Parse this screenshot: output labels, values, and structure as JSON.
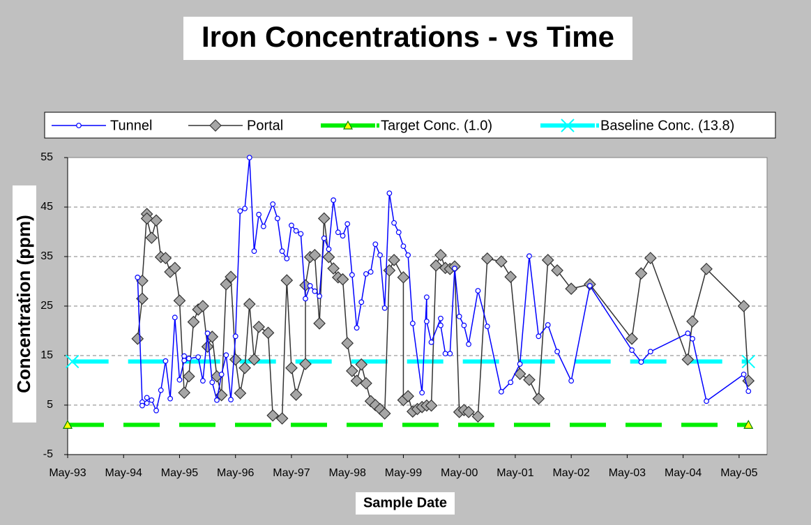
{
  "chart_data": {
    "type": "line",
    "title": "Iron Concentrations - vs Time",
    "x_label": "Sample Date",
    "y_label": "Concentration (ppm)",
    "xlim": [
      "May-93",
      "Nov-05"
    ],
    "xticks": [
      "May-93",
      "May-94",
      "May-95",
      "May-96",
      "May-97",
      "May-98",
      "May-99",
      "May-00",
      "May-01",
      "May-02",
      "May-03",
      "May-04",
      "May-05"
    ],
    "ylim": [
      -5,
      55
    ],
    "yticks": [
      -5,
      5,
      15,
      25,
      35,
      45,
      55
    ],
    "grid": true,
    "legend": "top",
    "series": [
      {
        "name": "Tunnel",
        "color": "#0000ff",
        "marker": "circle",
        "marker_fill": "#ffffff",
        "x": [
          "Aug-94",
          "Sep-94",
          "Sep-94",
          "Oct-94",
          "Oct-94",
          "Nov-94",
          "Dec-94",
          "Jan-95",
          "Feb-95",
          "Mar-95",
          "Apr-95",
          "May-95",
          "Jun-95",
          "Jun-95",
          "Jul-95",
          "Sep-95",
          "Oct-95",
          "Nov-95",
          "Dec-95",
          "Jan-96",
          "Feb-96",
          "Mar-96",
          "Apr-96",
          "May-96",
          "Jun-96",
          "Jul-96",
          "Aug-96",
          "Sep-96",
          "Oct-96",
          "Nov-96",
          "Jan-97",
          "Feb-97",
          "Mar-97",
          "Apr-97",
          "May-97",
          "Jun-97",
          "Jul-97",
          "Aug-97",
          "Sep-97",
          "Oct-97",
          "Nov-97",
          "Dec-97",
          "Jan-98",
          "Feb-98",
          "Mar-98",
          "Apr-98",
          "May-98",
          "Jun-98",
          "Jul-98",
          "Aug-98",
          "Sep-98",
          "Oct-98",
          "Nov-98",
          "Dec-98",
          "Jan-99",
          "Feb-99",
          "Mar-99",
          "Apr-99",
          "May-99",
          "Jun-99",
          "Jul-99",
          "Sep-99",
          "Oct-99",
          "Oct-99",
          "Nov-99",
          "Jan-00",
          "Jan-00",
          "Feb-00",
          "Mar-00",
          "Apr-00",
          "May-00",
          "Jun-00",
          "Jul-00",
          "Sep-00",
          "Nov-00",
          "Feb-01",
          "Apr-01",
          "Jun-01",
          "Aug-01",
          "Oct-01",
          "Dec-01",
          "Feb-02",
          "May-02",
          "Sep-02",
          "Jun-03",
          "Aug-03",
          "Oct-03",
          "Jun-04",
          "Jul-04",
          "Oct-04",
          "Jun-05",
          "Jul-05"
        ],
        "values": [
          30.8,
          5.6,
          4.9,
          5.4,
          6.5,
          6.0,
          3.9,
          8.0,
          13.9,
          6.3,
          22.7,
          10.1,
          14.0,
          14.9,
          14.4,
          14.7,
          9.9,
          19.5,
          9.6,
          6.0,
          11.2,
          15.1,
          6.1,
          18.9,
          44.2,
          44.7,
          55,
          36.1,
          43.5,
          41.1,
          45.6,
          42.7,
          36.1,
          34.6,
          41.3,
          40.2,
          39.6,
          26.5,
          29.1,
          28.0,
          27.0,
          38.7,
          36.5,
          46.4,
          39.9,
          39.2,
          41.6,
          31.3,
          20.6,
          25.8,
          31.5,
          31.9,
          37.5,
          35.3,
          24.6,
          47.8,
          41.8,
          39.9,
          37.1,
          35.3,
          21.5,
          7.5,
          26.8,
          21.9,
          17.7,
          22.5,
          21.1,
          15.4,
          15.4,
          32.6,
          22.9,
          21.1,
          17.3,
          28.1,
          20.9,
          7.7,
          9.6,
          13.3,
          35.1,
          18.9,
          21.2,
          15.8,
          9.9,
          29.1,
          16.1,
          13.7,
          15.8,
          19.5,
          18.4,
          5.8,
          11.2,
          7.8
        ]
      },
      {
        "name": "Portal",
        "color": "#333333",
        "marker": "diamond",
        "marker_fill": "#a6a6a6",
        "x": [
          "Aug-94",
          "Sep-94",
          "Sep-94",
          "Oct-94",
          "Oct-94",
          "Nov-94",
          "Dec-94",
          "Jan-95",
          "Feb-95",
          "Mar-95",
          "Apr-95",
          "May-95",
          "Jun-95",
          "Jul-95",
          "Aug-95",
          "Sep-95",
          "Oct-95",
          "Nov-95",
          "Dec-95",
          "Jan-96",
          "Feb-96",
          "Mar-96",
          "Apr-96",
          "May-96",
          "Jun-96",
          "Jul-96",
          "Aug-96",
          "Sep-96",
          "Oct-96",
          "Dec-96",
          "Jan-97",
          "Mar-97",
          "Apr-97",
          "May-97",
          "Jun-97",
          "Aug-97",
          "Aug-97",
          "Sep-97",
          "Oct-97",
          "Nov-97",
          "Dec-97",
          "Jan-98",
          "Feb-98",
          "Mar-98",
          "Apr-98",
          "May-98",
          "Jun-98",
          "Jul-98",
          "Aug-98",
          "Sep-98",
          "Oct-98",
          "Nov-98",
          "Dec-98",
          "Jan-99",
          "Feb-99",
          "Mar-99",
          "May-99",
          "May-99",
          "Jun-99",
          "Jul-99",
          "Aug-99",
          "Sep-99",
          "Oct-99",
          "Nov-99",
          "Dec-99",
          "Jan-00",
          "Feb-00",
          "Mar-00",
          "Apr-00",
          "May-00",
          "Jun-00",
          "Jul-00",
          "Sep-00",
          "Nov-00",
          "Feb-01",
          "Apr-01",
          "Jun-01",
          "Aug-01",
          "Oct-01",
          "Dec-01",
          "Feb-02",
          "May-02",
          "Sep-02",
          "Jun-03",
          "Aug-03",
          "Oct-03",
          "Jun-04",
          "Jul-04",
          "Oct-04",
          "Jun-05",
          "Jul-05"
        ],
        "values": [
          18.4,
          26.5,
          30.1,
          43.6,
          42.7,
          38.8,
          42.3,
          34.9,
          34.7,
          31.9,
          32.7,
          26.1,
          7.5,
          10.8,
          21.8,
          24.3,
          25.0,
          16.8,
          18.8,
          10.8,
          7.0,
          29.4,
          30.9,
          14.2,
          7.4,
          12.5,
          25.4,
          14.2,
          20.8,
          19.6,
          2.9,
          2.3,
          30.2,
          12.5,
          7.1,
          13.3,
          29.2,
          34.9,
          35.3,
          21.5,
          42.7,
          34.9,
          32.6,
          30.8,
          30.4,
          17.5,
          11.9,
          9.9,
          13.2,
          9.4,
          5.8,
          5.0,
          4.2,
          3.3,
          32.2,
          34.3,
          30.8,
          6.0,
          6.8,
          3.7,
          4.2,
          4.6,
          4.9,
          4.9,
          33.2,
          35.3,
          32.7,
          32.5,
          33.0,
          3.6,
          4.0,
          3.6,
          2.7,
          34.6,
          34.0,
          30.9,
          11.3,
          10.1,
          6.3,
          34.3,
          32.2,
          28.5,
          29.4,
          18.4,
          31.6,
          34.7,
          14.2,
          21.9,
          32.5,
          25.0,
          9.9
        ]
      },
      {
        "name": "Target Conc. (1.0)",
        "color": "#00ee00",
        "marker": "triangle",
        "marker_fill": "#ffff00",
        "dashed": true,
        "x": [
          "May-93",
          "Jul-05"
        ],
        "values": [
          1.0,
          1.0
        ]
      },
      {
        "name": "Baseline Conc. (13.8)",
        "color": "#00ffff",
        "marker": "x",
        "marker_fill": "#00ffff",
        "dashed": true,
        "x": [
          "Jun-93",
          "Jul-05"
        ],
        "values": [
          13.8,
          13.8
        ]
      }
    ]
  }
}
